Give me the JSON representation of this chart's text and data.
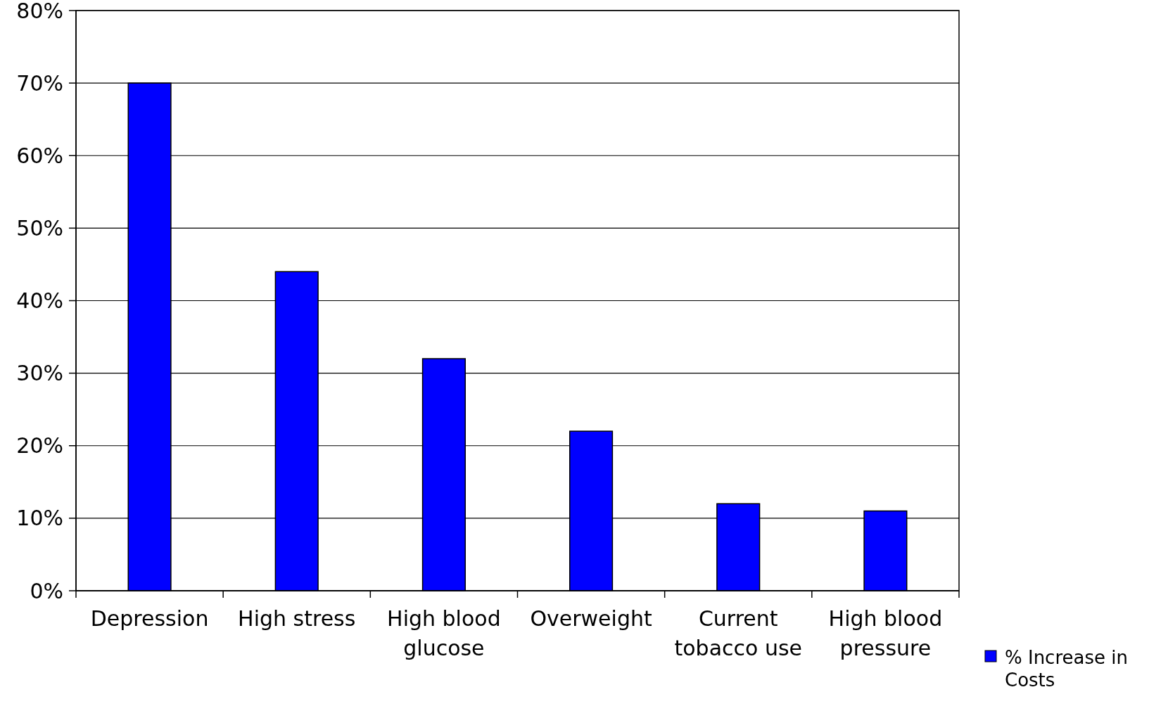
{
  "chart_data": {
    "type": "bar",
    "categories": [
      "Depression",
      "High stress",
      "High blood glucose",
      "Overweight",
      "Current tobacco use",
      "High blood pressure"
    ],
    "series": [
      {
        "name": "% Increase in Costs",
        "color": "#0000ff",
        "values": [
          70,
          44,
          32,
          22,
          12,
          11
        ]
      }
    ],
    "ylim": [
      0,
      80
    ],
    "yticks": [
      {
        "value": 0,
        "label": "0%"
      },
      {
        "value": 10,
        "label": "10%"
      },
      {
        "value": 20,
        "label": "20%"
      },
      {
        "value": 30,
        "label": "30%"
      },
      {
        "value": 40,
        "label": "40%"
      },
      {
        "value": 50,
        "label": "50%"
      },
      {
        "value": 60,
        "label": "60%"
      },
      {
        "value": 70,
        "label": "70%"
      },
      {
        "value": 80,
        "label": "80%"
      }
    ],
    "grid": "y",
    "legend": "right"
  }
}
